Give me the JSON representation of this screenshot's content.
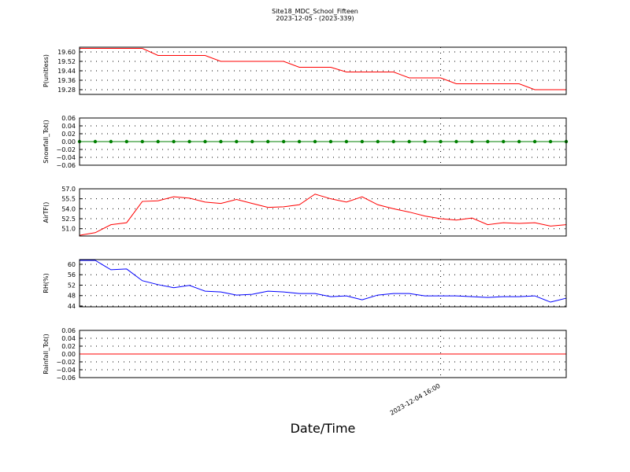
{
  "figure": {
    "title": "Site18_MDC_School_Fifteen",
    "subtitle": "2023-12-05 - (2023-339)",
    "xlabel": "Date/Time",
    "xlim": [
      0,
      31
    ],
    "xticks": [
      {
        "value": 23,
        "label": "2023-12-04 16:00"
      }
    ]
  },
  "chart_data": [
    {
      "type": "line",
      "ylabel": "P(unitless)",
      "color": "#ff0000",
      "grid": true,
      "ylim": [
        19.24,
        19.64
      ],
      "yticks": [
        {
          "value": 19.28,
          "label": "19.28"
        },
        {
          "value": 19.36,
          "label": "19.36"
        },
        {
          "value": 19.44,
          "label": "19.44"
        },
        {
          "value": 19.52,
          "label": "19.52"
        },
        {
          "value": 19.6,
          "label": "19.60"
        }
      ],
      "values": [
        19.63,
        19.63,
        19.63,
        19.63,
        19.63,
        19.57,
        19.57,
        19.57,
        19.57,
        19.52,
        19.52,
        19.52,
        19.52,
        19.52,
        19.47,
        19.47,
        19.47,
        19.43,
        19.43,
        19.43,
        19.43,
        19.38,
        19.38,
        19.38,
        19.33,
        19.33,
        19.33,
        19.33,
        19.33,
        19.28,
        19.28,
        19.28
      ]
    },
    {
      "type": "line",
      "ylabel": "Snowfall_Tot()",
      "color": "#008000",
      "markers": true,
      "grid": true,
      "ylim": [
        -0.06,
        0.06
      ],
      "yticks": [
        {
          "value": -0.06,
          "label": "−0.06"
        },
        {
          "value": -0.04,
          "label": "−0.04"
        },
        {
          "value": -0.02,
          "label": "−0.02"
        },
        {
          "value": 0,
          "label": "0.00"
        },
        0.02,
        0.04,
        0.06
      ],
      "values": [
        0,
        0,
        0,
        0,
        0,
        0,
        0,
        0,
        0,
        0,
        0,
        0,
        0,
        0,
        0,
        0,
        0,
        0,
        0,
        0,
        0,
        0,
        0,
        0,
        0,
        0,
        0,
        0,
        0,
        0,
        0,
        0
      ]
    },
    {
      "type": "line",
      "ylabel": "AirTF()",
      "color": "#ff0000",
      "grid": true,
      "ylim": [
        49.9,
        57.0
      ],
      "yticks": [
        {
          "value": 51,
          "label": "51.0"
        },
        52.5,
        {
          "value": 54,
          "label": "54.0"
        },
        55.5,
        {
          "value": 57,
          "label": "57.0"
        }
      ],
      "values": [
        50.0,
        50.4,
        51.6,
        51.9,
        55.1,
        55.2,
        55.8,
        55.6,
        55.0,
        54.8,
        55.4,
        54.8,
        54.2,
        54.3,
        54.6,
        56.2,
        55.5,
        55.0,
        55.8,
        54.6,
        54.0,
        53.5,
        52.9,
        52.5,
        52.3,
        52.6,
        51.6,
        51.9,
        51.8,
        51.9,
        51.4,
        51.6
      ]
    },
    {
      "type": "line",
      "ylabel": "RH(%)",
      "color": "#0000ff",
      "grid": true,
      "ylim": [
        43.7,
        61.8
      ],
      "yticks": [
        44,
        48,
        52,
        56,
        60
      ],
      "values": [
        61.5,
        61.5,
        57.9,
        58.2,
        53.7,
        52.2,
        51.0,
        51.9,
        49.7,
        49.4,
        48.2,
        48.5,
        49.7,
        49.4,
        48.8,
        48.8,
        47.6,
        47.9,
        46.4,
        48.2,
        48.8,
        48.8,
        47.9,
        47.9,
        47.9,
        47.6,
        47.3,
        47.6,
        47.6,
        47.9,
        45.5,
        47.0
      ]
    },
    {
      "type": "line",
      "ylabel": "Rainfall_Tot()",
      "color": "#ff0000",
      "grid": true,
      "ylim": [
        -0.06,
        0.06
      ],
      "yticks": [
        {
          "value": -0.06,
          "label": "−0.06"
        },
        {
          "value": -0.04,
          "label": "−0.04"
        },
        {
          "value": -0.02,
          "label": "−0.02"
        },
        {
          "value": 0,
          "label": "0.00"
        },
        0.02,
        0.04,
        0.06
      ],
      "values": [
        0,
        0,
        0,
        0,
        0,
        0,
        0,
        0,
        0,
        0,
        0,
        0,
        0,
        0,
        0,
        0,
        0,
        0,
        0,
        0,
        0,
        0,
        0,
        0,
        0,
        0,
        0,
        0,
        0,
        0,
        0,
        0
      ]
    }
  ]
}
